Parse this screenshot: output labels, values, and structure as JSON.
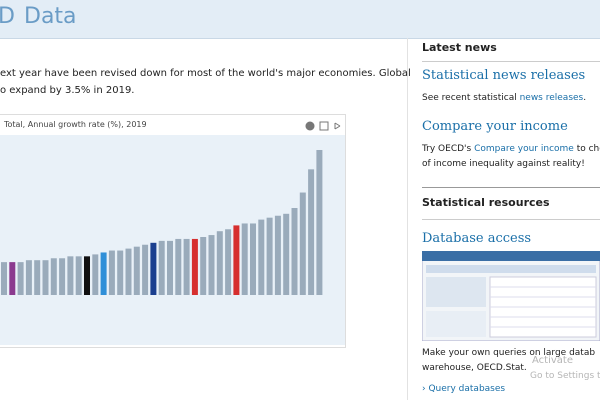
{
  "header": {
    "logo_fragment": "D",
    "title": "Data"
  },
  "intro": {
    "line1": "ext year have been revised down for most of the world's major economies. Global",
    "line2": "o expand by 3.5% in 2019."
  },
  "chart": {
    "type": "bar",
    "title": "Total, Annual growth rate (%), 2019",
    "values": [
      1.7,
      1.7,
      1.7,
      1.8,
      1.8,
      1.8,
      1.9,
      1.9,
      2.0,
      2.0,
      2.0,
      2.1,
      2.2,
      2.3,
      2.3,
      2.4,
      2.5,
      2.6,
      2.7,
      2.8,
      2.8,
      2.9,
      2.9,
      2.9,
      3.0,
      3.1,
      3.3,
      3.4,
      3.6,
      3.7,
      3.7,
      3.9,
      4.0,
      4.1,
      4.2,
      4.5,
      5.3,
      6.5,
      7.5
    ],
    "colors": [
      "#9aabbb",
      "#8b3a8f",
      "#9aabbb",
      "#9aabbb",
      "#9aabbb",
      "#9aabbb",
      "#9aabbb",
      "#9aabbb",
      "#9aabbb",
      "#9aabbb",
      "#111111",
      "#9aabbb",
      "#2f8fd8",
      "#9aabbb",
      "#9aabbb",
      "#9aabbb",
      "#9aabbb",
      "#9aabbb",
      "#1b3f8f",
      "#9aabbb",
      "#9aabbb",
      "#9aabbb",
      "#9aabbb",
      "#d62f2f",
      "#9aabbb",
      "#9aabbb",
      "#9aabbb",
      "#9aabbb",
      "#d62f2f",
      "#9aabbb",
      "#9aabbb",
      "#9aabbb",
      "#9aabbb",
      "#9aabbb",
      "#9aabbb",
      "#9aabbb",
      "#9aabbb",
      "#9aabbb",
      "#9aabbb"
    ],
    "ylim": [
      0,
      7.5
    ]
  },
  "sidebar": {
    "latest_news": {
      "heading": "Latest news",
      "items": [
        {
          "title": "Statistical news releases",
          "before": "See recent statistical ",
          "link": "news releases",
          "after": "."
        },
        {
          "title": "Compare your income",
          "before": "Try OECD's ",
          "link": "Compare your income",
          "after": " to check",
          "line2": "of income inequality against reality!"
        }
      ]
    },
    "resources": {
      "heading": "Statistical resources",
      "title": "Database access",
      "line1": "Make your own queries on large datab",
      "line2": "warehouse, OECD.Stat.",
      "link": "› Query databases"
    }
  },
  "watermark": {
    "line1": "Activate",
    "line2": "Go to Settings to"
  }
}
